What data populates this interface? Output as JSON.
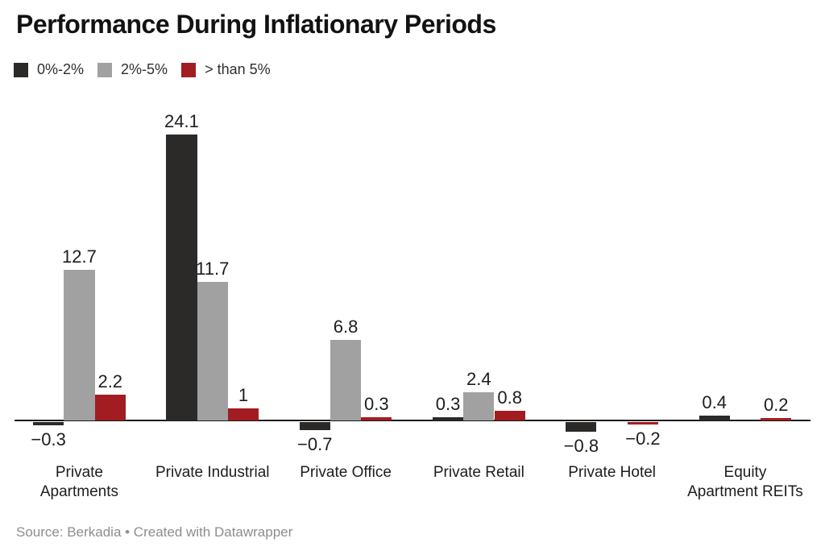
{
  "title": "Performance During Inflationary Periods",
  "footer": "Source: Berkadia • Created with Datawrapper",
  "colors": {
    "series_dark": "#2c2a29",
    "series_gray": "#a1a1a1",
    "series_red": "#a11d21",
    "axis_line": "#1a1a1a",
    "label_text": "#1d1d1d",
    "footer_text": "#8d8d8d"
  },
  "chart_data": {
    "type": "bar",
    "title": "Performance During Inflationary Periods",
    "xlabel": "",
    "ylabel": "",
    "grid": false,
    "legend_position": "top-left",
    "baseline": 0,
    "ylim": [
      -1,
      25
    ],
    "categories": [
      "Private\nApartments",
      "Private Industrial",
      "Private Office",
      "Private Retail",
      "Private Hotel",
      "Equity\nApartment REITs"
    ],
    "series": [
      {
        "name": "0%-2%",
        "color": "#2c2a29",
        "values": [
          -0.3,
          24.1,
          -0.7,
          0.3,
          -0.8,
          0.4
        ],
        "labels": [
          "−0.3",
          "24.1",
          "−0.7",
          "0.3",
          "−0.8",
          "0.4"
        ]
      },
      {
        "name": "2%-5%",
        "color": "#a1a1a1",
        "values": [
          12.7,
          11.7,
          6.8,
          2.4,
          null,
          null
        ],
        "labels": [
          "12.7",
          "11.7",
          "6.8",
          "2.4",
          "",
          ""
        ]
      },
      {
        "name": "> than 5%",
        "color": "#a11d21",
        "values": [
          2.2,
          1,
          0.3,
          0.8,
          -0.2,
          0.2
        ],
        "labels": [
          "2.2",
          "1",
          "0.3",
          "0.8",
          "−0.2",
          "0.2"
        ]
      }
    ]
  }
}
